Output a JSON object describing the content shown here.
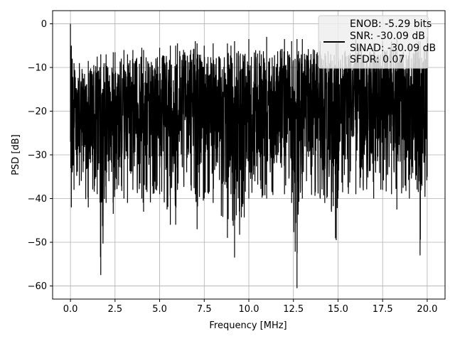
{
  "chart_data": {
    "type": "line",
    "title": "",
    "xlabel": "Frequency [MHz]",
    "ylabel": "PSD [dB]",
    "xlim": [
      -1.0,
      21.0
    ],
    "ylim": [
      -63.0,
      3.0
    ],
    "xticks": [
      0.0,
      2.5,
      5.0,
      7.5,
      10.0,
      12.5,
      15.0,
      17.5,
      20.0
    ],
    "xtick_labels": [
      "0.0",
      "2.5",
      "5.0",
      "7.5",
      "10.0",
      "12.5",
      "15.0",
      "17.5",
      "20.0"
    ],
    "yticks": [
      0,
      -10,
      -20,
      -30,
      -40,
      -50,
      -60
    ],
    "ytick_labels": [
      "0",
      "−10",
      "−20",
      "−30",
      "−40",
      "−50",
      "−60"
    ],
    "grid": true,
    "legend_position": "top-right",
    "legend_entries": [
      "ENOB: -5.29 bits",
      "SNR: -30.09 dB",
      "SINAD: -30.09 dB",
      "SFDR: 0.07"
    ],
    "series_color": "#000000",
    "series": [
      {
        "x": [
          0.0,
          0.02,
          0.05,
          0.1,
          0.2,
          0.5,
          1.0,
          1.5,
          1.7,
          2.0,
          2.4,
          2.5,
          3.0,
          3.2,
          3.5,
          4.0,
          4.1,
          5.0,
          5.6,
          5.9,
          6.0,
          7.0,
          7.1,
          7.5,
          8.0,
          8.8,
          9.0,
          9.2,
          10.0,
          11.0,
          12.0,
          12.4,
          12.7,
          13.0,
          14.0,
          14.9,
          15.0,
          16.0,
          17.0,
          17.5,
          18.0,
          18.3,
          19.0,
          19.5,
          19.6,
          20.0
        ],
        "upper": [
          0.0,
          -6.0,
          -5.0,
          -8.0,
          -9.0,
          -9.0,
          -8.5,
          -7.5,
          -7.0,
          -7.0,
          -6.5,
          -6.5,
          -6.0,
          -7.0,
          -6.0,
          -5.5,
          -6.0,
          -5.5,
          -5.0,
          -5.0,
          -4.5,
          -4.0,
          -4.5,
          -5.0,
          -4.5,
          -4.5,
          -5.0,
          -4.0,
          -3.5,
          -3.0,
          -3.5,
          -4.0,
          -3.5,
          -3.5,
          -4.0,
          -4.5,
          -4.0,
          -3.5,
          -4.5,
          -4.0,
          -4.0,
          -3.5,
          -5.0,
          -4.0,
          -4.0,
          -3.0
        ],
        "lower": [
          -27.0,
          -33.0,
          -42.0,
          -34.0,
          -38.0,
          -37.0,
          -42.0,
          -39.0,
          -57.5,
          -41.0,
          -43.5,
          -38.0,
          -40.0,
          -41.0,
          -38.0,
          -40.0,
          -43.0,
          -39.0,
          -46.0,
          -46.0,
          -38.0,
          -39.0,
          -47.0,
          -40.0,
          -41.0,
          -49.0,
          -39.0,
          -53.5,
          -40.0,
          -40.0,
          -39.0,
          -41.0,
          -60.5,
          -40.0,
          -40.0,
          -49.5,
          -40.0,
          -39.0,
          -40.0,
          -38.0,
          -39.0,
          -42.5,
          -40.0,
          -38.5,
          -53.0,
          -35.0
        ]
      }
    ]
  }
}
